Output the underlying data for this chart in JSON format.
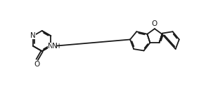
{
  "bg_color": "#ffffff",
  "line_color": "#1a1a1a",
  "line_width": 1.3,
  "font_size": 7.5,
  "figsize": [
    3.03,
    1.23
  ],
  "dpi": 100,
  "xlim": [
    -0.2,
    10.2
  ],
  "ylim": [
    1.0,
    4.3
  ]
}
